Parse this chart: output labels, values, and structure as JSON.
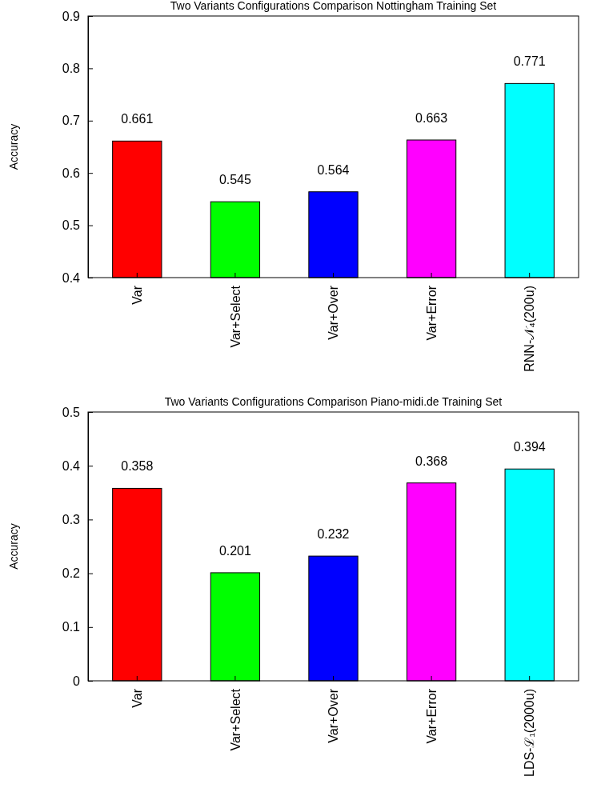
{
  "chart_data": [
    {
      "type": "bar",
      "title": "Two Variants Configurations Comparison Nottingham Training Set",
      "ylabel": "Accuracy",
      "categories": [
        "Var",
        "Var+Select",
        "Var+Over",
        "Var+Error",
        "RNN-𝒩₄(200u)"
      ],
      "values": [
        0.661,
        0.545,
        0.564,
        0.663,
        0.771
      ],
      "colors": [
        "#ff0000",
        "#00ff00",
        "#0000ff",
        "#ff00ff",
        "#00ffff"
      ],
      "ylim": [
        0.4,
        0.9
      ],
      "yticks": [
        0.4,
        0.5,
        0.6,
        0.7,
        0.8,
        0.9
      ],
      "data_labels": true
    },
    {
      "type": "bar",
      "title": "Two Variants Configurations Comparison Piano-midi.de Training Set",
      "ylabel": "Accuracy",
      "categories": [
        "Var",
        "Var+Select",
        "Var+Over",
        "Var+Error",
        "LDS-ℒ₁(2000u)"
      ],
      "values": [
        0.358,
        0.201,
        0.232,
        0.368,
        0.394
      ],
      "colors": [
        "#ff0000",
        "#00ff00",
        "#0000ff",
        "#ff00ff",
        "#00ffff"
      ],
      "ylim": [
        0,
        0.5
      ],
      "yticks": [
        0,
        0.1,
        0.2,
        0.3,
        0.4,
        0.5
      ],
      "data_labels": true
    }
  ]
}
